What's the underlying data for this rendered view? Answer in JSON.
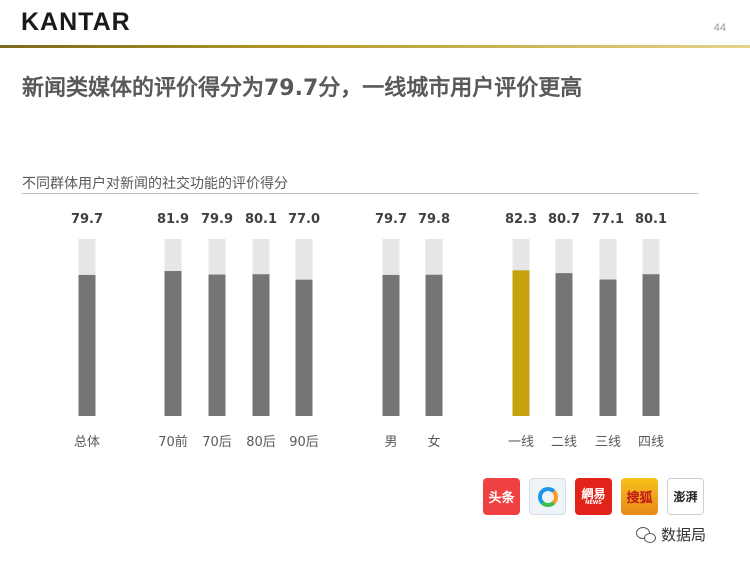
{
  "header": {
    "logo_text": "KANTAR",
    "page_number": "44"
  },
  "headline": "新闻类媒体的评价得分为79.7分，一线城市用户评价更高",
  "subtitle": "不同群体用户对新闻的社交功能的评价得分",
  "colors": {
    "bar": "#757575",
    "bar_highlight": "#c4a20c",
    "bar_background": "#e6e6e6",
    "accent_rule": "#b39a2a"
  },
  "chart_data": {
    "type": "bar",
    "title": "不同群体用户对新闻的社交功能的评价得分",
    "categories": [
      "总体",
      "70前",
      "70后",
      "80后",
      "90后",
      "男",
      "女",
      "一线",
      "二线",
      "三线",
      "四线"
    ],
    "groups": [
      [
        "总体"
      ],
      [
        "70前",
        "70后",
        "80后",
        "90后"
      ],
      [
        "男",
        "女"
      ],
      [
        "一线",
        "二线",
        "三线",
        "四线"
      ]
    ],
    "values": [
      79.7,
      81.9,
      79.9,
      80.1,
      77.0,
      79.7,
      79.8,
      82.3,
      80.7,
      77.1,
      80.1
    ],
    "value_labels": [
      "79.7",
      "81.9",
      "79.9",
      "80.1",
      "77.0",
      "79.7",
      "79.8",
      "82.3",
      "80.7",
      "77.1",
      "80.1"
    ],
    "highlight_index": 7,
    "ylim": [
      0,
      100
    ],
    "grid": false,
    "data_labels": true
  },
  "source_logos": [
    {
      "name": "toutiao",
      "text": "头条"
    },
    {
      "name": "qq-news",
      "text": ""
    },
    {
      "name": "netease",
      "text": "網易",
      "sub": "NEWS"
    },
    {
      "name": "sohu",
      "text": "搜狐"
    },
    {
      "name": "the-paper",
      "text": "澎湃"
    }
  ],
  "watermark": "数据局"
}
